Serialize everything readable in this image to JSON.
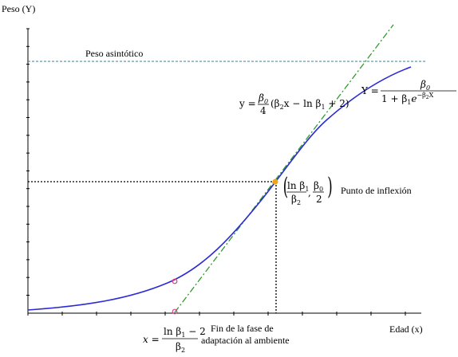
{
  "texts": {
    "y_axis_label": "Peso (Y)",
    "x_axis_label": "Edad (x)",
    "asymptote_label": "Peso asintótico",
    "inflection_label": "Punto de inflexión",
    "end_phase_line1": "Fin de la fase de",
    "end_phase_line2": "adaptación al ambiente"
  },
  "equations": {
    "tangent_lhs": "y =",
    "tangent_beta0": "β",
    "tangent_4": "4",
    "tangent_rest": "(β",
    "tangent_rest2": "x − ln β",
    "tangent_rest3": " + 2)",
    "logistic_lhs": "Y =",
    "logistic_num": "β",
    "logistic_den_a": "1 + β",
    "logistic_den_b": "e",
    "logistic_exp": "−β",
    "logistic_exp_x": "X",
    "inflect_ln": "ln β",
    "inflect_b2": "β",
    "inflect_b0": "β",
    "inflect_2": "2",
    "end_x": "x =",
    "end_num": "ln β",
    "end_num_rest": " − 2",
    "end_den": "β",
    "sub0": "0",
    "sub1": "1",
    "sub2": "2"
  },
  "colors": {
    "curve": "#2a2ad6",
    "tangent": "#2e9a2e",
    "asymptote": "#2f7f98",
    "inflection_point": "#f0a41c",
    "marker": "#d8408a"
  }
}
